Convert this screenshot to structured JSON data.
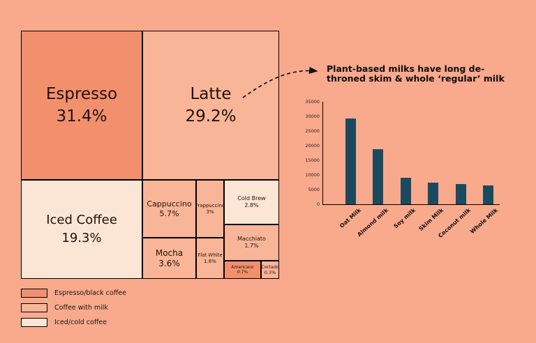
{
  "page": {
    "background": "#F9A98C",
    "text_color": "#1f1208"
  },
  "treemap": {
    "colors": {
      "espresso": "#F2906E",
      "milk": "#F9B598",
      "iced": "#FBE6D6"
    },
    "cells": [
      {
        "label": "Espresso",
        "pct": "31.4%",
        "category": "espresso"
      },
      {
        "label": "Latte",
        "pct": "29.2%",
        "category": "milk"
      },
      {
        "label": "Iced Coffee",
        "pct": "19.3%",
        "category": "iced"
      },
      {
        "label": "Cappuccino",
        "pct": "5.7%",
        "category": "milk"
      },
      {
        "label": "Mocha",
        "pct": "3.6%",
        "category": "milk"
      },
      {
        "label": "Frappuccino",
        "pct": "3%",
        "category": "milk"
      },
      {
        "label": "Cold Brew",
        "pct": "2.8%",
        "category": "iced"
      },
      {
        "label": "Flat White",
        "pct": "1.8%",
        "category": "milk"
      },
      {
        "label": "Macchiato",
        "pct": "1.7%",
        "category": "milk"
      },
      {
        "label": "Americano",
        "pct": "0.7%",
        "category": "espresso"
      },
      {
        "label": "Cortado",
        "pct": "0.3%",
        "category": "milk"
      }
    ],
    "legend": [
      {
        "label": "Espresso/black coffee",
        "color": "#F2906E"
      },
      {
        "label": "Coffee with milk",
        "color": "#F9B598"
      },
      {
        "label": "Iced/cold coffee",
        "color": "#FBE6D6"
      }
    ]
  },
  "annotation": {
    "line1": "Plant-based milks have long de-",
    "line2": "throned skim & whole ‘regular’ milk"
  },
  "chart_data": {
    "type": "bar",
    "title": "Plant-based milks have long de-throned skim & whole ‘regular’ milk",
    "categories": [
      "Oat Milk",
      "Almond milk",
      "Soy milk",
      "Skim Milk",
      "Coconut milk",
      "Whole Milk"
    ],
    "values": [
      29500,
      19000,
      9000,
      7500,
      7000,
      6500
    ],
    "xlabel": "",
    "ylabel": "",
    "ylim": [
      0,
      35000
    ],
    "yticks": [
      35000,
      30000,
      25000,
      20000,
      15000,
      10000,
      5000,
      0
    ],
    "bar_color": "#1B4A5F",
    "grid": false,
    "legend_position": "none"
  }
}
